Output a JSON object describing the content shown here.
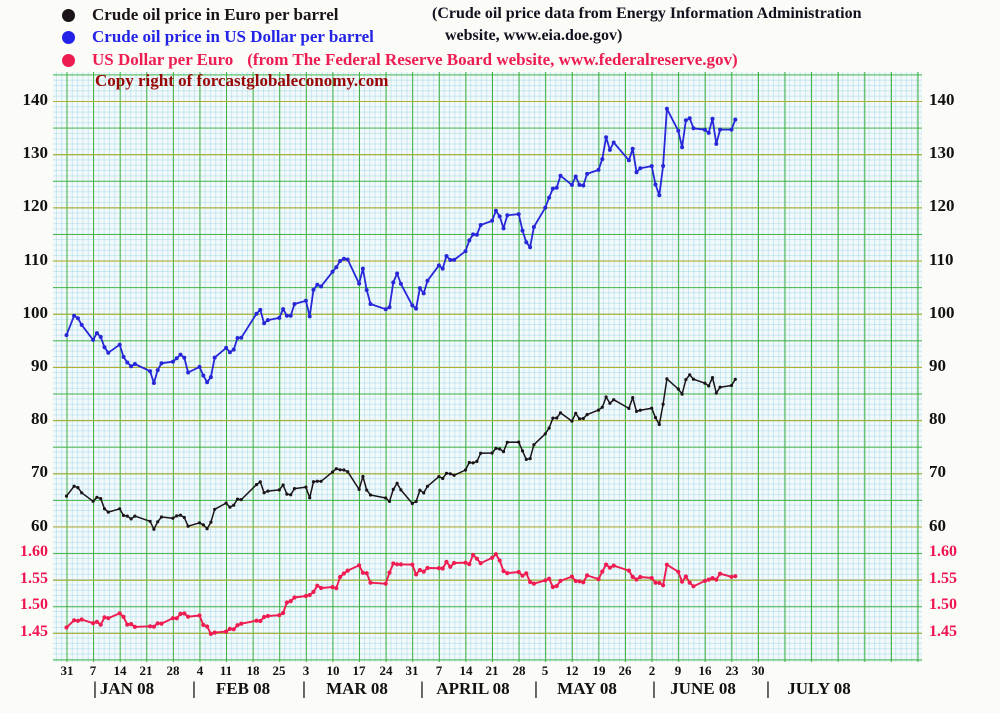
{
  "colors": {
    "euro_series": "#1a1418",
    "usd_series": "#2727d8",
    "fx_series": "#ee1c50",
    "note_text": "#12121f",
    "copyright_text": "#990404",
    "grid_green": "#46b446",
    "grid_olive": "#b5ae2e"
  },
  "legend": {
    "items": [
      {
        "id": "eur",
        "label": "Crude oil price in Euro per barrel",
        "color": "#1a1418"
      },
      {
        "id": "usd",
        "label": "Crude oil price in US Dollar per barrel",
        "color": "#2323e8"
      },
      {
        "id": "fx",
        "label": "US Dollar per Euro",
        "color": "#ee1c50",
        "note": "(from The Federal Reserve Board website, www.federalreserve.gov)"
      }
    ],
    "source_note_line1": "(Crude oil price data from Energy Information Administration",
    "source_note_line2": "website, www.eia.doe.gov)",
    "copyright": "Copy right of forcastglobaleconomy.com"
  },
  "chart_data": {
    "type": "line",
    "title": "Crude oil price in Euro and US Dollar per barrel, and US Dollar per Euro, Dec 31 2007 - June 2008",
    "x_unit": "calendar days since Dec 31 2007 (weekdays plotted)",
    "grid": true,
    "oil_axis": {
      "side": "both",
      "ticks": [
        140,
        130,
        120,
        110,
        100,
        90,
        80,
        70,
        60
      ],
      "range": [
        60,
        140
      ],
      "color": "#111111"
    },
    "fx_axis": {
      "side": "both",
      "ticks": [
        "1.60",
        "1.55",
        "1.50",
        "1.45"
      ],
      "range": [
        1.45,
        1.6
      ],
      "color": "#ef1350"
    },
    "x_tick_days": [
      0,
      7,
      14,
      21,
      28,
      35,
      42,
      49,
      56,
      63,
      70,
      77,
      84,
      91,
      98,
      105,
      112,
      119,
      126,
      133,
      140,
      147,
      154,
      161,
      168,
      175,
      182
    ],
    "x_tick_labels": [
      "31",
      "7",
      "14",
      "21",
      "28",
      "4",
      "11",
      "18",
      "25",
      "3",
      "10",
      "17",
      "24",
      "31",
      "7",
      "14",
      "21",
      "28",
      "5",
      "12",
      "19",
      "26",
      "2",
      "9",
      "16",
      "23",
      "30"
    ],
    "month_separator": "|",
    "months": [
      {
        "label": "JAN 08",
        "pipe_day": 7,
        "center_day": 16
      },
      {
        "label": "FEB 08",
        "pipe_day": 33,
        "center_day": 46.5
      },
      {
        "label": "MAR 08",
        "pipe_day": 62,
        "center_day": 76.5
      },
      {
        "label": "APRIL 08",
        "pipe_day": 93,
        "center_day": 107
      },
      {
        "label": "MAY 08",
        "pipe_day": 123,
        "center_day": 137
      },
      {
        "label": "JUNE 08",
        "pipe_day": 154,
        "center_day": 167.5
      },
      {
        "label": "JULY 08",
        "pipe_day": 184,
        "center_day": 198
      }
    ],
    "days": [
      0,
      2,
      3,
      4,
      7,
      8,
      9,
      10,
      11,
      14,
      15,
      16,
      17,
      18,
      22,
      23,
      24,
      25,
      28,
      29,
      30,
      31,
      32,
      35,
      36,
      37,
      38,
      39,
      42,
      43,
      44,
      45,
      46,
      50,
      51,
      52,
      53,
      56,
      57,
      58,
      59,
      60,
      63,
      64,
      65,
      66,
      67,
      70,
      71,
      72,
      73,
      74,
      77,
      78,
      79,
      80,
      84,
      85,
      86,
      87,
      88,
      91,
      92,
      93,
      94,
      95,
      98,
      99,
      100,
      101,
      102,
      105,
      106,
      107,
      108,
      109,
      112,
      113,
      114,
      115,
      116,
      119,
      120,
      121,
      122,
      123,
      126,
      127,
      128,
      129,
      130,
      133,
      134,
      135,
      136,
      137,
      140,
      141,
      142,
      143,
      144,
      148,
      149,
      150,
      151,
      154,
      155,
      156,
      157,
      158,
      161,
      162,
      163,
      164,
      165,
      168,
      169,
      170,
      171,
      172,
      175,
      176
    ],
    "series": [
      {
        "id": "usd",
        "name": "Crude oil price in US Dollar per barrel",
        "axis": "oil",
        "color": "#2727d8",
        "values": [
          96.0,
          99.62,
          99.18,
          97.91,
          95.09,
          96.37,
          95.66,
          93.71,
          92.69,
          94.2,
          91.9,
          90.84,
          90.13,
          90.57,
          89.21,
          86.99,
          89.41,
          90.71,
          90.99,
          91.64,
          92.33,
          91.75,
          88.96,
          90.02,
          88.41,
          87.14,
          88.11,
          91.77,
          93.59,
          92.78,
          93.27,
          95.46,
          95.5,
          100.01,
          100.74,
          98.23,
          98.81,
          99.23,
          100.88,
          99.64,
          99.62,
          101.84,
          102.45,
          99.52,
          104.52,
          105.47,
          105.15,
          107.9,
          108.75,
          109.92,
          110.33,
          110.21,
          105.68,
          108.5,
          104.48,
          101.84,
          100.86,
          101.22,
          105.9,
          107.58,
          105.62,
          101.58,
          100.98,
          104.83,
          103.83,
          106.23,
          109.09,
          108.5,
          110.87,
          110.11,
          110.14,
          111.76,
          113.79,
          114.93,
          114.86,
          116.69,
          117.48,
          119.37,
          118.3,
          116.06,
          118.52,
          118.75,
          115.63,
          113.46,
          112.52,
          116.32,
          119.97,
          121.84,
          123.53,
          123.69,
          125.96,
          124.23,
          125.8,
          124.22,
          124.12,
          126.29,
          127.05,
          129.07,
          133.17,
          130.81,
          132.19,
          128.85,
          131.03,
          126.62,
          127.35,
          127.76,
          124.31,
          122.3,
          127.79,
          138.54,
          134.4,
          131.31,
          136.38,
          136.74,
          134.86,
          134.61,
          134.01,
          136.68,
          131.93,
          134.62,
          134.62,
          136.5
        ]
      },
      {
        "id": "eur",
        "name": "Crude oil price in Euro per barrel",
        "axis": "oil",
        "color": "#1a1418",
        "values": [
          65.74,
          67.59,
          67.33,
          66.36,
          64.75,
          65.51,
          65.27,
          63.34,
          62.72,
          63.35,
          62.09,
          61.98,
          61.45,
          61.97,
          61.0,
          59.51,
          60.9,
          61.8,
          61.57,
          62.02,
          62.14,
          61.71,
          60.08,
          60.71,
          60.34,
          59.6,
          60.83,
          63.26,
          64.42,
          63.65,
          64.02,
          65.17,
          65.08,
          67.89,
          68.41,
          66.37,
          66.67,
          66.89,
          67.82,
          66.1,
          65.98,
          67.15,
          67.42,
          65.41,
          68.44,
          68.54,
          68.52,
          70.24,
          70.88,
          70.68,
          70.64,
          70.32,
          67.0,
          69.41,
          66.87,
          65.94,
          65.38,
          64.74,
          67.0,
          68.12,
          66.89,
          64.35,
          64.72,
          66.84,
          66.34,
          67.57,
          69.4,
          69.05,
          70.01,
          69.93,
          69.64,
          70.64,
          72.04,
          71.98,
          72.26,
          73.8,
          73.83,
          74.69,
          74.58,
          74.09,
          75.85,
          75.89,
          74.23,
          72.63,
          72.79,
          75.4,
          77.45,
          78.51,
          80.4,
          80.41,
          81.37,
          79.84,
          81.28,
          80.29,
          80.32,
          81.05,
          81.9,
          82.45,
          84.36,
          83.17,
          83.85,
          82.22,
          84.24,
          81.66,
          81.88,
          82.25,
          80.48,
          79.2,
          83.0,
          87.77,
          85.87,
          84.91,
          87.64,
          88.53,
          87.7,
          86.96,
          86.44,
          88.0,
          85.09,
          86.21,
          86.53,
          87.68
        ]
      },
      {
        "id": "fx",
        "name": "US Dollar per Euro",
        "axis": "fx",
        "color": "#ee1c50",
        "values": [
          1.4603,
          1.4738,
          1.473,
          1.4754,
          1.4685,
          1.471,
          1.4656,
          1.4794,
          1.4778,
          1.487,
          1.4802,
          1.4657,
          1.4668,
          1.4615,
          1.4626,
          1.4618,
          1.4682,
          1.4677,
          1.4778,
          1.4776,
          1.4859,
          1.4867,
          1.4806,
          1.4829,
          1.4652,
          1.4622,
          1.4484,
          1.4507,
          1.4527,
          1.4577,
          1.4569,
          1.4647,
          1.4674,
          1.4731,
          1.4725,
          1.48,
          1.482,
          1.4834,
          1.4875,
          1.5073,
          1.5099,
          1.5167,
          1.5195,
          1.5214,
          1.5272,
          1.5389,
          1.5345,
          1.5362,
          1.5343,
          1.5552,
          1.5618,
          1.5672,
          1.5772,
          1.5632,
          1.5625,
          1.5445,
          1.5426,
          1.5635,
          1.5806,
          1.5792,
          1.579,
          1.5785,
          1.5602,
          1.5684,
          1.5652,
          1.5722,
          1.5718,
          1.5713,
          1.5836,
          1.5745,
          1.5815,
          1.5821,
          1.5796,
          1.5966,
          1.5896,
          1.5812,
          1.5913,
          1.5982,
          1.5862,
          1.5665,
          1.5626,
          1.5647,
          1.5577,
          1.5622,
          1.5458,
          1.5428,
          1.5489,
          1.552,
          1.5365,
          1.5383,
          1.548,
          1.556,
          1.5477,
          1.5471,
          1.5453,
          1.5582,
          1.5513,
          1.5654,
          1.5785,
          1.5728,
          1.5766,
          1.5672,
          1.5555,
          1.5505,
          1.5553,
          1.5533,
          1.5446,
          1.5442,
          1.5397,
          1.5784,
          1.5651,
          1.5464,
          1.5562,
          1.5446,
          1.5378,
          1.5479,
          1.5503,
          1.5532,
          1.5504,
          1.5615,
          1.5557,
          1.5568
        ]
      }
    ]
  }
}
